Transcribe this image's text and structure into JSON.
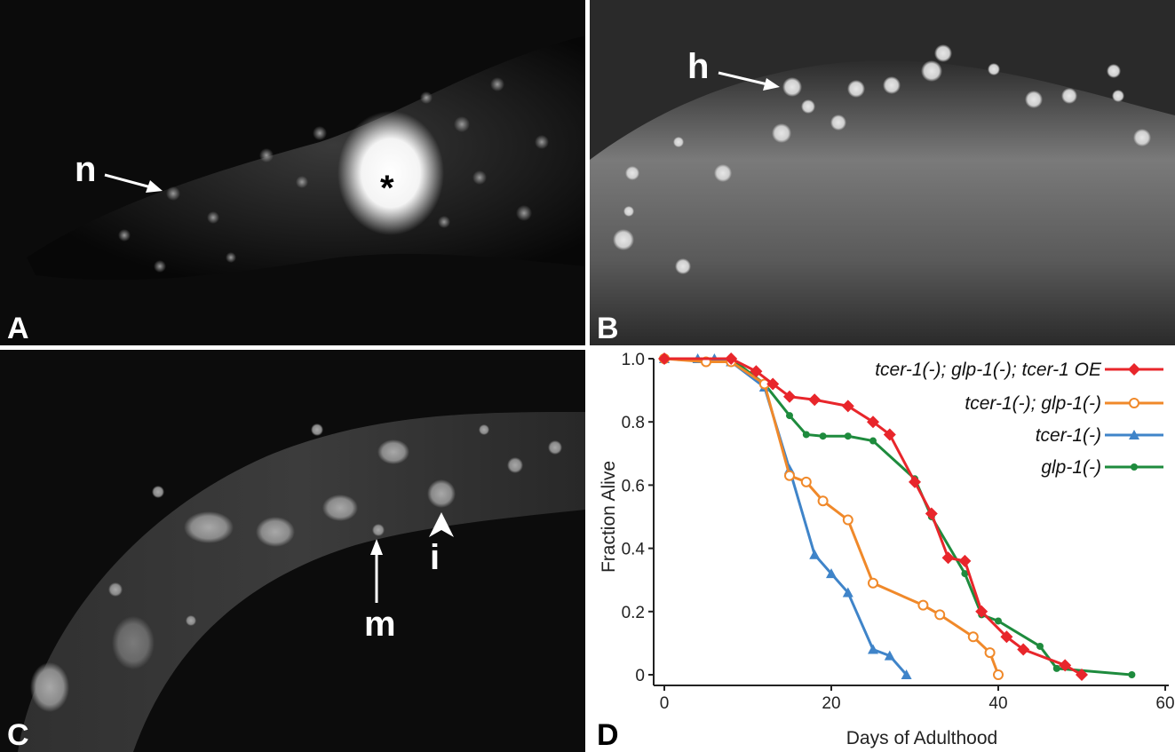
{
  "panels": {
    "A": {
      "label": "A",
      "marks": [
        {
          "text": "n"
        },
        {
          "text": "*"
        }
      ]
    },
    "B": {
      "label": "B",
      "marks": [
        {
          "text": "h"
        }
      ]
    },
    "C": {
      "label": "C",
      "marks": [
        {
          "text": "m"
        },
        {
          "text": "i"
        }
      ]
    },
    "D": {
      "label": "D"
    }
  },
  "chart_data": {
    "type": "line",
    "xlabel": "Days of Adulthood",
    "ylabel": "Fraction Alive",
    "xlim": [
      0,
      60
    ],
    "ylim": [
      0,
      1.0
    ],
    "xticks": [
      0,
      20,
      40,
      60
    ],
    "yticks": [
      0,
      0.2,
      0.4,
      0.6,
      0.8,
      1.0
    ],
    "ytick_labels": [
      "0",
      "0.2",
      "0.4",
      "0.6",
      "0.8",
      "1.0"
    ],
    "grid": false,
    "legend_position": "top-right",
    "series": [
      {
        "name": "tcer-1(-); glp-1(-); tcer-1 OE",
        "color": "#e8262b",
        "marker": "diamond",
        "x": [
          0,
          8,
          11,
          13,
          15,
          18,
          22,
          25,
          27,
          30,
          32,
          34,
          36,
          38,
          41,
          43,
          48,
          50
        ],
        "y": [
          1.0,
          1.0,
          0.96,
          0.92,
          0.88,
          0.87,
          0.85,
          0.8,
          0.76,
          0.61,
          0.51,
          0.37,
          0.36,
          0.2,
          0.12,
          0.08,
          0.03,
          0.0
        ]
      },
      {
        "name": "tcer-1(-); glp-1(-)",
        "color": "#f0892a",
        "marker": "open-circle",
        "x": [
          0,
          5,
          8,
          12,
          15,
          17,
          19,
          22,
          25,
          31,
          33,
          37,
          39,
          40
        ],
        "y": [
          1.0,
          0.99,
          0.99,
          0.92,
          0.63,
          0.61,
          0.55,
          0.49,
          0.29,
          0.22,
          0.19,
          0.12,
          0.07,
          0.0
        ]
      },
      {
        "name": "tcer-1(-)",
        "color": "#3f84c9",
        "marker": "triangle",
        "x": [
          0,
          4,
          6,
          8,
          12,
          15,
          18,
          20,
          22,
          25,
          27,
          29
        ],
        "y": [
          1.0,
          1.0,
          1.0,
          0.99,
          0.91,
          0.65,
          0.38,
          0.32,
          0.26,
          0.08,
          0.06,
          0.0
        ]
      },
      {
        "name": "glp-1(-)",
        "color": "#1e8b3d",
        "marker": "filled-circle",
        "x": [
          0,
          8,
          12,
          15,
          17,
          19,
          22,
          25,
          30,
          32,
          36,
          38,
          40,
          45,
          47,
          56
        ],
        "y": [
          1.0,
          1.0,
          0.92,
          0.82,
          0.76,
          0.755,
          0.755,
          0.74,
          0.62,
          0.5,
          0.32,
          0.19,
          0.17,
          0.09,
          0.02,
          0.0
        ]
      }
    ]
  }
}
